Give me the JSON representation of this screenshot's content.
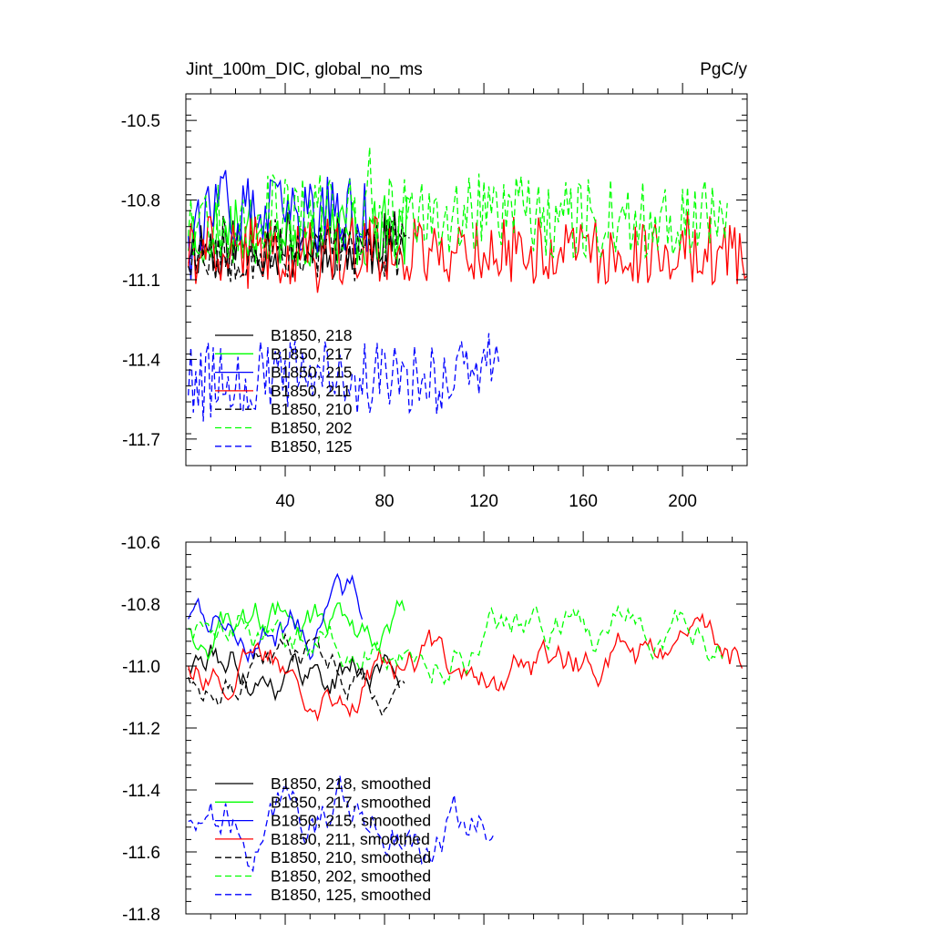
{
  "chart_data": [
    {
      "type": "line",
      "title": "Jint_100m_DIC, global_no_ms",
      "units_label": "PgC/y",
      "xlim": [
        0,
        226
      ],
      "ylim": [
        -11.8,
        -10.4
      ],
      "yticks": [
        -10.5,
        -10.8,
        -11.1,
        -11.4,
        -11.7
      ],
      "ytick_labels": [
        "-10.5",
        "-10.8",
        "-11.1",
        "-11.4",
        "-11.7"
      ],
      "xticks": [
        40,
        80,
        120,
        160,
        200
      ],
      "xtick_labels": [
        "40",
        "80",
        "120",
        "160",
        "200"
      ],
      "series": [
        {
          "name": "B1850, 218",
          "color": "#000000",
          "dash": "solid",
          "length": 88,
          "base": -10.97,
          "amp": 0.13,
          "seed": 11
        },
        {
          "name": "B1850, 217",
          "color": "#00ff00",
          "dash": "solid",
          "length": 90,
          "base": -10.92,
          "amp": 0.14,
          "seed": 23
        },
        {
          "name": "B1850, 215",
          "color": "#0000ff",
          "dash": "solid",
          "length": 73,
          "base": -10.86,
          "amp": 0.15,
          "seed": 37
        },
        {
          "name": "B1850, 211",
          "color": "#ff0000",
          "dash": "solid",
          "length": 226,
          "base": -10.99,
          "amp": 0.13,
          "seed": 41
        },
        {
          "name": "B1850, 210",
          "color": "#000000",
          "dash": "dashed",
          "length": 90,
          "base": -10.99,
          "amp": 0.12,
          "seed": 53
        },
        {
          "name": "B1850, 202",
          "color": "#00ff00",
          "dash": "dashed",
          "length": 218,
          "base": -10.86,
          "amp": 0.16,
          "seed": 67
        },
        {
          "name": "B1850, 125",
          "color": "#0000ff",
          "dash": "dashed",
          "length": 126,
          "base": -11.47,
          "amp": 0.14,
          "seed": 79
        }
      ]
    },
    {
      "type": "line",
      "xlim": [
        0,
        226
      ],
      "ylim": [
        -11.8,
        -10.6
      ],
      "yticks": [
        -10.6,
        -10.8,
        -11.0,
        -11.2,
        -11.4,
        -11.6,
        -11.8
      ],
      "ytick_labels": [
        "-10.6",
        "-10.8",
        "-11.0",
        "-11.2",
        "-11.4",
        "-11.6",
        "-11.8"
      ],
      "series": [
        {
          "name": "B1850, 218, smoothed",
          "color": "#000000",
          "dash": "solid",
          "length": 86,
          "base": -10.99,
          "amp": 0.04,
          "seed": 111
        },
        {
          "name": "B1850, 217, smoothed",
          "color": "#00ff00",
          "dash": "solid",
          "length": 88,
          "base": -10.86,
          "amp": 0.04,
          "seed": 123
        },
        {
          "name": "B1850, 215, smoothed",
          "color": "#0000ff",
          "dash": "solid",
          "length": 71,
          "base": -10.83,
          "amp": 0.04,
          "seed": 137
        },
        {
          "name": "B1850, 211, smoothed",
          "color": "#ff0000",
          "dash": "solid",
          "length": 224,
          "base": -10.98,
          "amp": 0.04,
          "seed": 141
        },
        {
          "name": "B1850, 210, smoothed",
          "color": "#000000",
          "dash": "dashed",
          "length": 88,
          "base": -11.02,
          "amp": 0.035,
          "seed": 153
        },
        {
          "name": "B1850, 202, smoothed",
          "color": "#00ff00",
          "dash": "dashed",
          "length": 216,
          "base": -10.86,
          "amp": 0.04,
          "seed": 167
        },
        {
          "name": "B1850, 125, smoothed",
          "color": "#0000ff",
          "dash": "dashed",
          "length": 124,
          "base": -11.48,
          "amp": 0.05,
          "seed": 179
        }
      ]
    }
  ]
}
